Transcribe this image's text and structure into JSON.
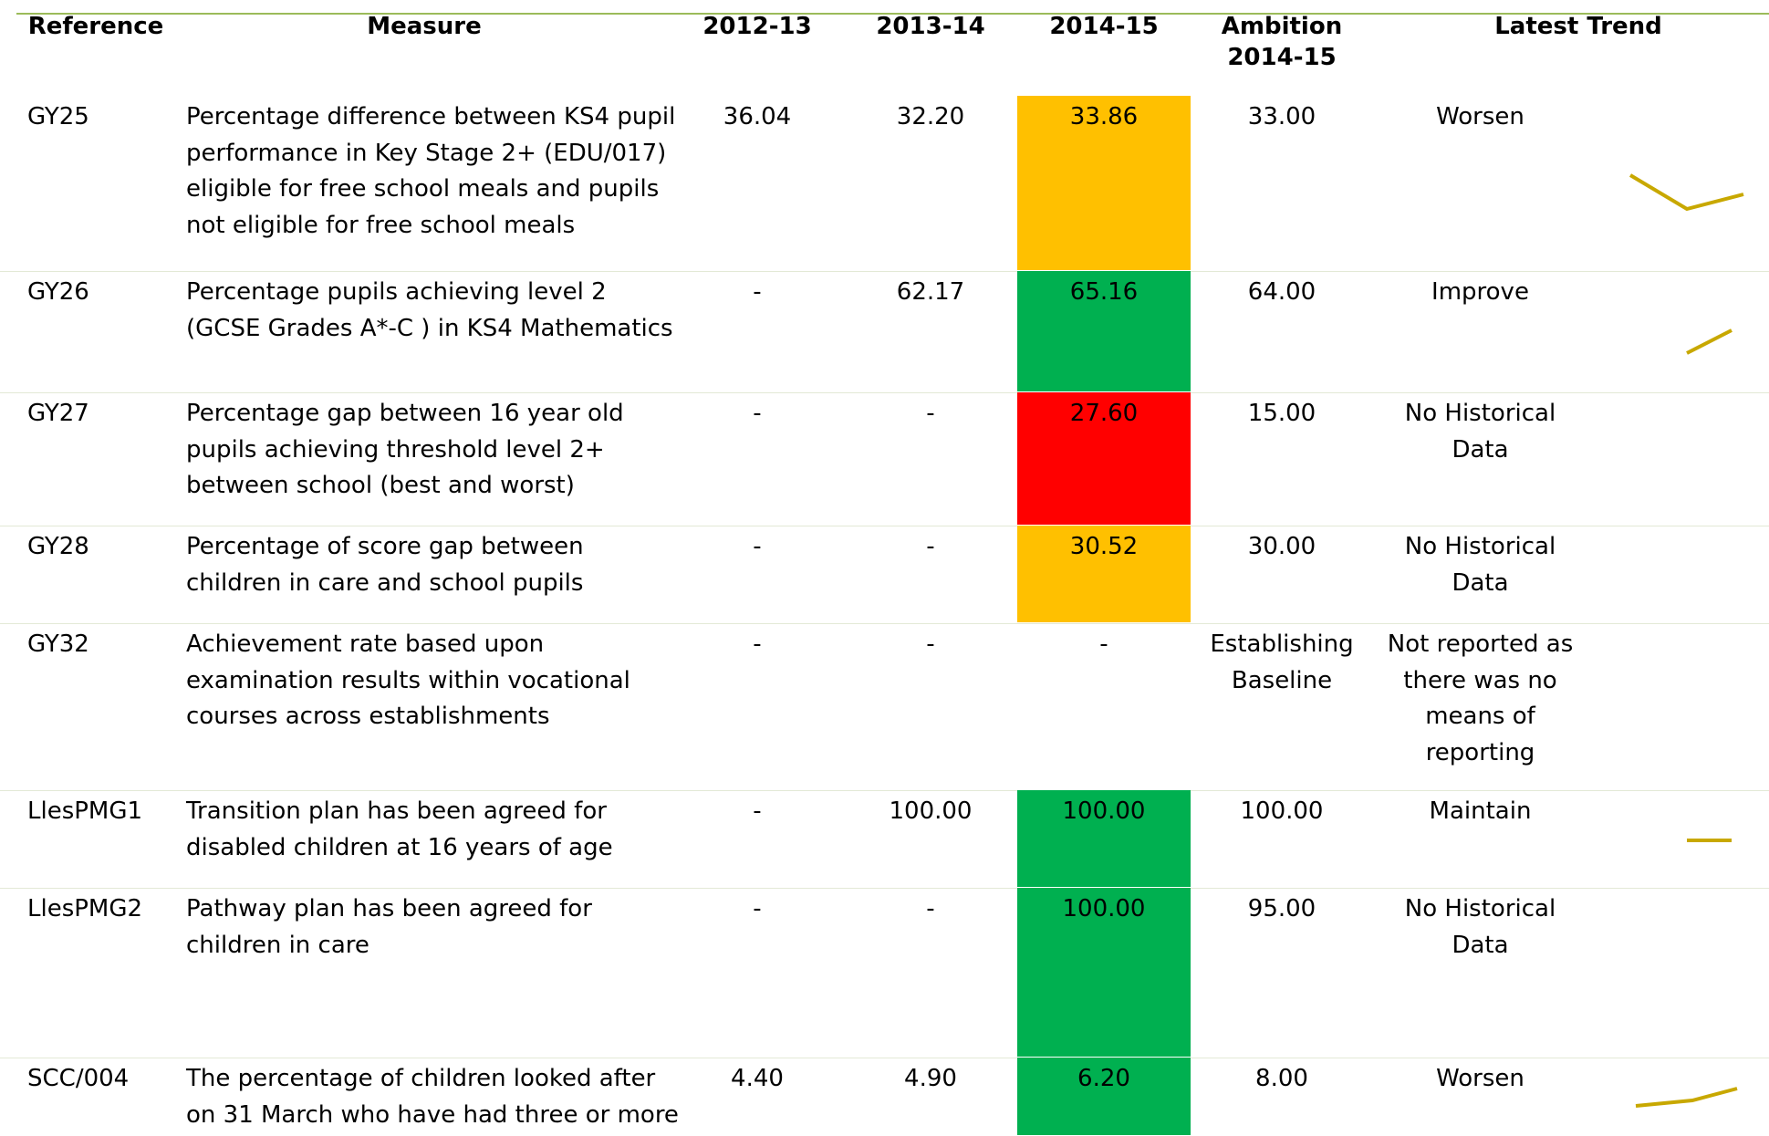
{
  "table": {
    "columns": [
      "Reference",
      "Measure",
      "2012-13",
      "2013-14",
      "2014-15",
      "Ambition 2014-15",
      "Latest Trend"
    ],
    "rows": [
      {
        "cells": [
          "GY25",
          "Percentage difference between KS4 pupil performance in Key Stage 2+ (EDU/017) eligible for free school meals and pupils not eligible for free school meals",
          "36.04",
          "32.20",
          "33.86",
          "33.00",
          "Worsen"
        ],
        "status_color": "#ffc000"
      },
      {
        "cells": [
          "GY26",
          "Percentage pupils achieving level 2 (GCSE Grades A*-C ) in KS4 Mathematics",
          "-",
          "62.17",
          "65.16",
          "64.00",
          "Improve"
        ],
        "status_color": "#00b050"
      },
      {
        "cells": [
          "GY27",
          "Percentage gap between 16 year old pupils achieving threshold level 2+ between school (best and worst)",
          "-",
          "-",
          "27.60",
          "15.00",
          "No Historical Data"
        ],
        "status_color": "#ff0000"
      },
      {
        "cells": [
          "GY28",
          "Percentage of score gap between children in care and school pupils",
          "-",
          "-",
          "30.52",
          "30.00",
          "No Historical Data"
        ],
        "status_color": "#ffc000"
      },
      {
        "cells": [
          "GY32",
          "Achievement rate based upon examination results within vocational courses across establishments",
          "-",
          "-",
          "-",
          "Establishing Baseline",
          "Not reported as there was no means of reporting"
        ],
        "status_color": null
      },
      {
        "cells": [
          "LlesPMG1",
          "Transition plan has been agreed for disabled children at 16 years of age",
          "-",
          "100.00",
          "100.00",
          "100.00",
          "Maintain"
        ],
        "status_color": "#00b050"
      },
      {
        "cells": [
          "LlesPMG2",
          "Pathway plan has been agreed for children in care",
          "-",
          "-",
          "100.00",
          "95.00",
          "No Historical Data"
        ],
        "status_color": "#00b050"
      },
      {
        "cells": [
          "SCC/004",
          "The percentage of children looked after on 31 March who have had three or more",
          "4.40",
          "4.90",
          "6.20",
          "8.00",
          "Worsen"
        ],
        "status_color": "#00b050"
      }
    ]
  }
}
